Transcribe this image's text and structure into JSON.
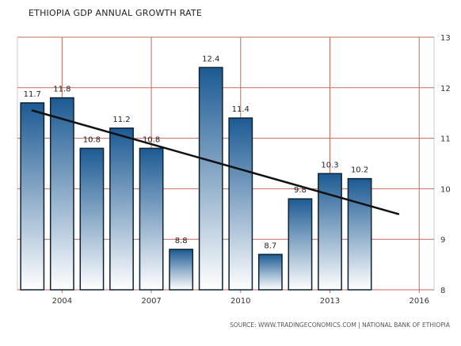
{
  "chart_data": {
    "type": "bar",
    "title": "ETHIOPIA GDP ANNUAL GROWTH RATE",
    "source": "SOURCE: WWW.TRADINGECONOMICS.COM | NATIONAL BANK OF ETHIOPIA",
    "categories": [
      "2003",
      "2004",
      "2005",
      "2006",
      "2007",
      "2008",
      "2009",
      "2010",
      "2011",
      "2012",
      "2013",
      "2014"
    ],
    "values": [
      11.7,
      11.8,
      10.8,
      11.2,
      10.8,
      8.8,
      12.4,
      11.4,
      8.7,
      9.8,
      10.3,
      10.2
    ],
    "data_labels": [
      "11.7",
      "11.8",
      "10.8",
      "11.2",
      "10.8",
      "8.8",
      "12.4",
      "11.4",
      "8.7",
      "9.8",
      "10.3",
      "10.2"
    ],
    "x_tick_labels": [
      {
        "year": 2004,
        "label": "2004"
      },
      {
        "year": 2007,
        "label": "2007"
      },
      {
        "year": 2010,
        "label": "2010"
      },
      {
        "year": 2013,
        "label": "2013"
      },
      {
        "year": 2016,
        "label": "2016"
      }
    ],
    "xlim": [
      2002.5,
      2016.5
    ],
    "ylim": [
      8,
      13
    ],
    "y_ticks": [
      8,
      9,
      10,
      11,
      12,
      13
    ],
    "y_axis_side": "right",
    "trend_line": {
      "from": {
        "x": 2003,
        "y": 11.55
      },
      "to": {
        "x": 2015.3,
        "y": 9.5
      }
    },
    "grid": true,
    "colors": {
      "bar_top": "#1c5a93",
      "bar_bottom": "#ffffff",
      "bar_border": "#0d2233",
      "grid": "#c9695c",
      "trend": "#111111",
      "frame": "#cccccc"
    }
  }
}
